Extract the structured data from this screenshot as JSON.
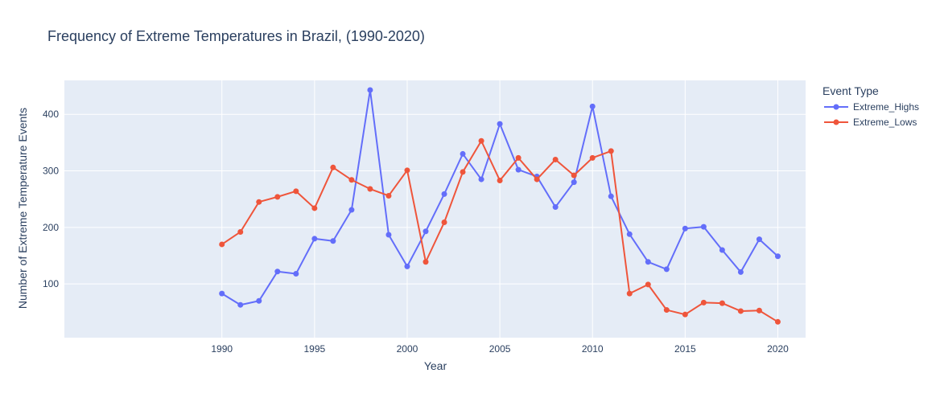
{
  "chart_data": {
    "type": "line",
    "title": "Frequency of Extreme Temperatures in Brazil, (1990-2020)",
    "xlabel": "Year",
    "ylabel": "Number of Extreme Temperature Events",
    "x": [
      1990,
      1991,
      1992,
      1993,
      1994,
      1995,
      1996,
      1997,
      1998,
      1999,
      2000,
      2001,
      2002,
      2003,
      2004,
      2005,
      2006,
      2007,
      2008,
      2009,
      2010,
      2011,
      2012,
      2013,
      2014,
      2015,
      2016,
      2017,
      2018,
      2019,
      2020
    ],
    "xlim": [
      1981.5,
      2021.5
    ],
    "ylim": [
      5,
      460
    ],
    "x_ticks": [
      1990,
      1995,
      2000,
      2005,
      2010,
      2015,
      2020
    ],
    "y_ticks": [
      100,
      200,
      300,
      400
    ],
    "legend_title": "Event Type",
    "legend_position": "top-right, outside plot",
    "grid": true,
    "series": [
      {
        "name": "Extreme_Highs",
        "color": "#636efa",
        "values": [
          83,
          63,
          70,
          122,
          118,
          180,
          176,
          231,
          443,
          187,
          131,
          193,
          259,
          330,
          285,
          383,
          302,
          290,
          236,
          280,
          414,
          255,
          188,
          139,
          126,
          198,
          201,
          160,
          121,
          179,
          149
        ]
      },
      {
        "name": "Extreme_Lows",
        "color": "#ef553b",
        "values": [
          170,
          192,
          245,
          254,
          264,
          234,
          306,
          284,
          268,
          256,
          301,
          139,
          209,
          298,
          353,
          283,
          323,
          285,
          320,
          292,
          323,
          335,
          83,
          99,
          54,
          46,
          67,
          66,
          52,
          53,
          33
        ]
      }
    ]
  },
  "colors": {
    "plot_background": "#e5ecf6",
    "grid": "#ffffff",
    "text": "#2a3f5f"
  }
}
